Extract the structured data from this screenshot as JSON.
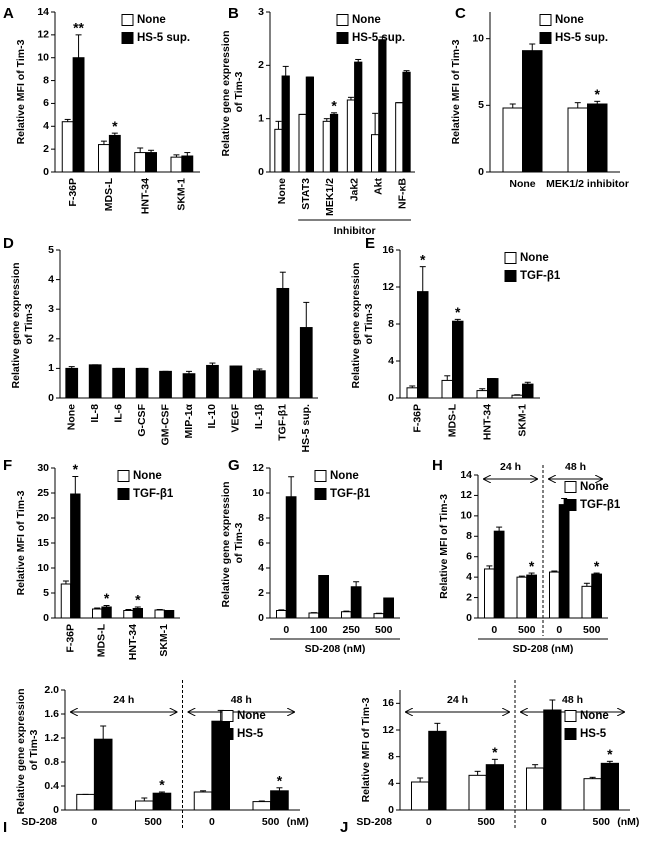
{
  "chart_data": [
    {
      "type": "bar",
      "label": "A",
      "ylabel": "Relative MFI of Tim-3",
      "categories": [
        "F-36P",
        "MDS-L",
        "HNT-34",
        "SKM-1"
      ],
      "series": [
        {
          "name": "None",
          "color": "#ffffff",
          "values": [
            4.4,
            2.4,
            1.7,
            1.3
          ],
          "errors": [
            0.2,
            0.3,
            0.4,
            0.2
          ]
        },
        {
          "name": "HS-5 sup.",
          "color": "#000000",
          "values": [
            10,
            3.2,
            1.7,
            1.4
          ],
          "errors": [
            2,
            0.2,
            0.2,
            0.3
          ]
        }
      ],
      "significance": [
        "**",
        "*",
        null,
        null
      ],
      "ylim": [
        0,
        14
      ],
      "yticks": [
        0,
        2,
        4,
        6,
        8,
        10,
        12,
        14
      ],
      "legend": "upper right"
    },
    {
      "type": "bar",
      "label": "B",
      "ylabel": "Relative gene expression of Tim-3",
      "categories": [
        "None",
        "STAT3",
        "MEK1/2",
        "Jak2",
        "Akt",
        "NF-κB"
      ],
      "series": [
        {
          "name": "None",
          "color": "#ffffff",
          "values": [
            0.8,
            1.08,
            0.95,
            1.35,
            0.7,
            1.3
          ],
          "errors": [
            0.15,
            0,
            0.05,
            0.05,
            0.4,
            0
          ]
        },
        {
          "name": "HS-5 sup.",
          "color": "#000000",
          "values": [
            1.8,
            1.78,
            1.08,
            2.06,
            2.48,
            1.87
          ],
          "errors": [
            0.18,
            0,
            0.03,
            0.05,
            0.05,
            0.03
          ]
        }
      ],
      "significance": [
        null,
        null,
        "*",
        null,
        null,
        null
      ],
      "group_label": "Inhibitor",
      "ylim": [
        0,
        3
      ],
      "yticks": [
        0,
        1,
        2,
        3
      ],
      "legend": "upper right"
    },
    {
      "type": "bar",
      "label": "C",
      "ylabel": "Relative MFI of Tim-3",
      "categories": [
        "None",
        "MEK1/2 inhibitor"
      ],
      "series": [
        {
          "name": "None",
          "color": "#ffffff",
          "values": [
            4.8,
            4.8
          ],
          "errors": [
            0.3,
            0.4
          ]
        },
        {
          "name": "HS-5 sup.",
          "color": "#000000",
          "values": [
            9.1,
            5.1
          ],
          "errors": [
            0.5,
            0.2
          ]
        }
      ],
      "significance": [
        null,
        "*"
      ],
      "ylim": [
        0,
        12
      ],
      "yticks": [
        0,
        5,
        10
      ],
      "legend": "upper right"
    },
    {
      "type": "bar",
      "label": "D",
      "ylabel": "Relative gene expression of Tim-3",
      "categories": [
        "None",
        "IL-8",
        "IL-6",
        "G-CSF",
        "GM-CSF",
        "MIP-1α",
        "IL-10",
        "VEGF",
        "IL-1β",
        "TGF-β1",
        "HS-5 sup."
      ],
      "series": [
        {
          "color": "#000000",
          "values": [
            1.0,
            1.12,
            1.0,
            1.0,
            0.9,
            0.82,
            1.1,
            1.08,
            0.92,
            3.7,
            2.38
          ],
          "errors": [
            0.06,
            0,
            0,
            0,
            0,
            0.08,
            0.08,
            0,
            0.06,
            0.55,
            0.85
          ]
        }
      ],
      "ylim": [
        0,
        5
      ],
      "yticks": [
        0,
        1,
        2,
        3,
        4,
        5
      ]
    },
    {
      "type": "bar",
      "label": "E",
      "ylabel": "Relative gene expression of Tim-3",
      "categories": [
        "F-36P",
        "MDS-L",
        "HNT-34",
        "SKM-1"
      ],
      "series": [
        {
          "name": "None",
          "color": "#ffffff",
          "values": [
            1.1,
            1.9,
            0.8,
            0.3
          ],
          "errors": [
            0.2,
            0.5,
            0.2,
            0.05
          ]
        },
        {
          "name": "TGF-β1",
          "color": "#000000",
          "values": [
            11.5,
            8.3,
            2.1,
            1.5
          ],
          "errors": [
            2.7,
            0.2,
            0,
            0.2
          ]
        }
      ],
      "significance": [
        "*",
        "*",
        null,
        null
      ],
      "ylim": [
        0,
        16
      ],
      "yticks": [
        0,
        4,
        8,
        12,
        16
      ],
      "legend": "upper right"
    },
    {
      "type": "bar",
      "label": "F",
      "ylabel": "Relative MFI of Tim-3",
      "categories": [
        "F-36P",
        "MDS-L",
        "HNT-34",
        "SKM-1"
      ],
      "series": [
        {
          "name": "None",
          "color": "#ffffff",
          "values": [
            6.8,
            1.8,
            1.5,
            1.6
          ],
          "errors": [
            0.6,
            0.2,
            0.2,
            0.1
          ]
        },
        {
          "name": "TGF-β1",
          "color": "#000000",
          "values": [
            24.8,
            2.2,
            1.9,
            1.5
          ],
          "errors": [
            3.5,
            0.3,
            0.3,
            0
          ]
        }
      ],
      "significance": [
        "*",
        "*",
        "*",
        null
      ],
      "ylim": [
        0,
        30
      ],
      "yticks": [
        0,
        5,
        10,
        15,
        20,
        25,
        30
      ],
      "legend": "upper right"
    },
    {
      "type": "bar",
      "label": "G",
      "ylabel": "Relative gene expression of Tim-3",
      "xlabel": "SD-208 (nM)",
      "categories": [
        "0",
        "100",
        "250",
        "500"
      ],
      "series": [
        {
          "name": "None",
          "color": "#ffffff",
          "values": [
            0.6,
            0.4,
            0.5,
            0.35
          ],
          "errors": [
            0.05,
            0.03,
            0.05,
            0.03
          ]
        },
        {
          "name": "TGF-β1",
          "color": "#000000",
          "values": [
            9.7,
            3.4,
            2.5,
            1.6
          ],
          "errors": [
            1.6,
            0,
            0.4,
            0
          ]
        }
      ],
      "ylim": [
        0,
        12
      ],
      "yticks": [
        0,
        2,
        4,
        6,
        8,
        10,
        12
      ],
      "legend": "upper right"
    },
    {
      "type": "bar",
      "label": "H",
      "ylabel": "Relative MFI of Tim-3",
      "xlabel": "SD-208 (nM)",
      "categories": [
        "0",
        "500",
        "0",
        "500"
      ],
      "periods": [
        "24 h",
        "48 h"
      ],
      "series": [
        {
          "name": "None",
          "color": "#ffffff",
          "values": [
            4.8,
            4.0,
            4.5,
            3.1
          ],
          "errors": [
            0.3,
            0.1,
            0.1,
            0.3
          ]
        },
        {
          "name": "TGF-β1",
          "color": "#000000",
          "values": [
            8.5,
            4.2,
            11.1,
            4.3
          ],
          "errors": [
            0.4,
            0.2,
            0.6,
            0.1
          ]
        }
      ],
      "significance": [
        null,
        "*",
        null,
        "*"
      ],
      "ylim": [
        0,
        14
      ],
      "yticks": [
        0,
        2,
        4,
        6,
        8,
        10,
        12,
        14
      ],
      "legend": "upper right"
    },
    {
      "type": "bar",
      "label": "I",
      "ylabel": "Relative gene expression of Tim-3",
      "xlabel": "SD-208",
      "xunit": "(nM)",
      "categories": [
        "0",
        "500",
        "0",
        "500"
      ],
      "periods": [
        "24 h",
        "48 h"
      ],
      "series": [
        {
          "name": "None",
          "color": "#ffffff",
          "values": [
            0.26,
            0.15,
            0.3,
            0.14
          ],
          "errors": [
            0,
            0.05,
            0.02,
            0.01
          ]
        },
        {
          "name": "HS-5",
          "color": "#000000",
          "values": [
            1.18,
            0.28,
            1.48,
            0.32
          ],
          "errors": [
            0.22,
            0.02,
            0.18,
            0.05
          ]
        }
      ],
      "significance": [
        null,
        "*",
        null,
        "*"
      ],
      "ylim": [
        0,
        2
      ],
      "yticks": [
        0,
        0.4,
        0.8,
        1.2,
        1.6,
        {
          "value": 2,
          "label": "2.0"
        }
      ],
      "legend": "upper right"
    },
    {
      "type": "bar",
      "label": "J",
      "ylabel": "Relative MFI of Tim-3",
      "xlabel": "SD-208",
      "xunit": "(nM)",
      "categories": [
        "0",
        "500",
        "0",
        "500"
      ],
      "periods": [
        "24 h",
        "48 h"
      ],
      "series": [
        {
          "name": "None",
          "color": "#ffffff",
          "values": [
            4.2,
            5.2,
            6.3,
            4.7
          ],
          "errors": [
            0.6,
            0.6,
            0.5,
            0.2
          ]
        },
        {
          "name": "HS-5",
          "color": "#000000",
          "values": [
            11.8,
            6.8,
            15.0,
            7.0
          ],
          "errors": [
            1.2,
            0.8,
            1.5,
            0.3
          ]
        }
      ],
      "significance": [
        null,
        "*",
        null,
        "*"
      ],
      "ylim": [
        0,
        18
      ],
      "yticks": [
        0,
        4,
        8,
        12,
        16
      ],
      "legend": "upper right"
    }
  ]
}
